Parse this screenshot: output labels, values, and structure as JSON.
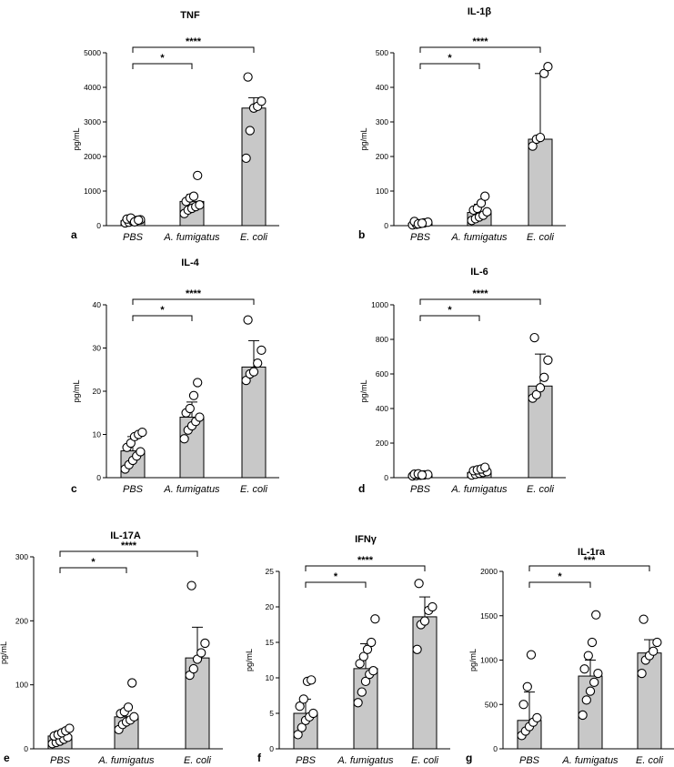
{
  "chart_data": [
    {
      "type": "bar",
      "panel": "a",
      "title": "TNF",
      "ylabel": "pg/mL",
      "categories": [
        "PBS",
        "A. fumigatus",
        "E. coli"
      ],
      "ylim": [
        0,
        5000
      ],
      "yticks": [
        0,
        1000,
        2000,
        3000,
        4000,
        5000
      ],
      "values": [
        140,
        700,
        3400
      ],
      "error_upper": [
        210,
        900,
        3700
      ],
      "points": [
        [
          80,
          100,
          130,
          150,
          170,
          190,
          220,
          110,
          160
        ],
        [
          350,
          450,
          500,
          550,
          600,
          700,
          800,
          850,
          1450
        ],
        [
          1950,
          2750,
          3400,
          3450,
          3600,
          4300
        ]
      ],
      "significance": [
        {
          "from": 0,
          "to": 1,
          "label": "*"
        },
        {
          "from": 0,
          "to": 2,
          "label": "****"
        }
      ]
    },
    {
      "type": "bar",
      "panel": "b",
      "title": "IL-1β",
      "ylabel": "pg/mL",
      "categories": [
        "PBS",
        "A. fumigatus",
        "E. coli"
      ],
      "ylim": [
        0,
        500
      ],
      "yticks": [
        0,
        100,
        200,
        300,
        400,
        500
      ],
      "values": [
        6,
        38,
        250
      ],
      "error_upper": [
        11,
        62,
        440
      ],
      "points": [
        [
          2,
          4,
          6,
          8,
          10,
          12,
          5,
          7
        ],
        [
          15,
          20,
          25,
          30,
          40,
          45,
          50,
          65,
          85
        ],
        [
          230,
          250,
          255,
          440,
          460
        ]
      ],
      "significance": [
        {
          "from": 0,
          "to": 1,
          "label": "*"
        },
        {
          "from": 0,
          "to": 2,
          "label": "****"
        }
      ]
    },
    {
      "type": "bar",
      "panel": "c",
      "title": "IL-4",
      "ylabel": "pg/mL",
      "categories": [
        "PBS",
        "A. fumigatus",
        "E. coli"
      ],
      "ylim": [
        0,
        40
      ],
      "yticks": [
        0,
        10,
        20,
        30,
        40
      ],
      "values": [
        6.2,
        14,
        25.6
      ],
      "error_upper": [
        9.5,
        17.5,
        31.7
      ],
      "points": [
        [
          2,
          3,
          4,
          5,
          6,
          7,
          8,
          9.5,
          10,
          10.5
        ],
        [
          9,
          11,
          12,
          13,
          14,
          15,
          16,
          19,
          22
        ],
        [
          22.5,
          24,
          24.5,
          26.5,
          29.5,
          36.5
        ]
      ],
      "significance": [
        {
          "from": 0,
          "to": 1,
          "label": "*"
        },
        {
          "from": 0,
          "to": 2,
          "label": "****"
        }
      ]
    },
    {
      "type": "bar",
      "panel": "d",
      "title": "IL-6",
      "ylabel": "pg/mL",
      "categories": [
        "PBS",
        "A. fumigatus",
        "E. coli"
      ],
      "ylim": [
        0,
        1000
      ],
      "yticks": [
        0,
        200,
        400,
        600,
        800,
        1000
      ],
      "values": [
        15,
        30,
        530
      ],
      "error_upper": [
        25,
        50,
        715
      ],
      "points": [
        [
          10,
          12,
          14,
          16,
          18,
          20,
          22,
          15
        ],
        [
          15,
          20,
          25,
          30,
          35,
          40,
          45,
          50,
          60
        ],
        [
          460,
          480,
          520,
          580,
          680,
          810
        ]
      ],
      "significance": [
        {
          "from": 0,
          "to": 1,
          "label": "*"
        },
        {
          "from": 0,
          "to": 2,
          "label": "****"
        }
      ]
    },
    {
      "type": "bar",
      "panel": "e",
      "title": "IL-17A",
      "ylabel": "pg/mL",
      "categories": [
        "PBS",
        "A. fumigatus",
        "E. coli"
      ],
      "ylim": [
        0,
        300
      ],
      "yticks": [
        0,
        100,
        200,
        300
      ],
      "values": [
        20,
        50,
        142
      ],
      "error_upper": [
        28,
        60,
        190
      ],
      "points": [
        [
          8,
          10,
          12,
          15,
          18,
          20,
          22,
          25,
          28,
          32
        ],
        [
          30,
          38,
          42,
          45,
          50,
          55,
          58,
          65,
          103
        ],
        [
          115,
          125,
          140,
          150,
          165,
          255
        ]
      ],
      "significance": [
        {
          "from": 0,
          "to": 1,
          "label": "*"
        },
        {
          "from": 0,
          "to": 2,
          "label": "****"
        }
      ]
    },
    {
      "type": "bar",
      "panel": "f",
      "title": "IFNγ",
      "ylabel": "pg/mL",
      "categories": [
        "PBS",
        "A. fumigatus",
        "E. coli"
      ],
      "ylim": [
        0,
        25
      ],
      "yticks": [
        0,
        5,
        10,
        15,
        20,
        25
      ],
      "values": [
        5,
        11.3,
        18.6
      ],
      "error_upper": [
        7,
        14.8,
        21.4
      ],
      "points": [
        [
          2,
          3,
          4,
          4.5,
          5,
          6,
          7,
          9.5,
          9.7
        ],
        [
          6.5,
          8,
          9.5,
          10.5,
          11,
          12,
          13,
          14,
          15,
          18.3
        ],
        [
          14,
          17.5,
          18,
          19.5,
          20,
          23.3
        ]
      ],
      "significance": [
        {
          "from": 0,
          "to": 1,
          "label": "*"
        },
        {
          "from": 0,
          "to": 2,
          "label": "****"
        }
      ]
    },
    {
      "type": "bar",
      "panel": "g",
      "title": "IL-1ra",
      "ylabel": "pg/mL",
      "categories": [
        "PBS",
        "A. fumigatus",
        "E. coli"
      ],
      "ylim": [
        0,
        2000
      ],
      "yticks": [
        0,
        500,
        1000,
        1500,
        2000
      ],
      "values": [
        320,
        820,
        1080
      ],
      "error_upper": [
        640,
        1000,
        1230
      ],
      "points": [
        [
          150,
          200,
          250,
          300,
          350,
          500,
          700,
          1060
        ],
        [
          380,
          550,
          650,
          750,
          850,
          900,
          1050,
          1200,
          1510
        ],
        [
          850,
          1000,
          1050,
          1100,
          1200,
          1460
        ]
      ],
      "significance": [
        {
          "from": 0,
          "to": 1,
          "label": "*"
        },
        {
          "from": 0,
          "to": 2,
          "label": "***"
        }
      ]
    }
  ]
}
